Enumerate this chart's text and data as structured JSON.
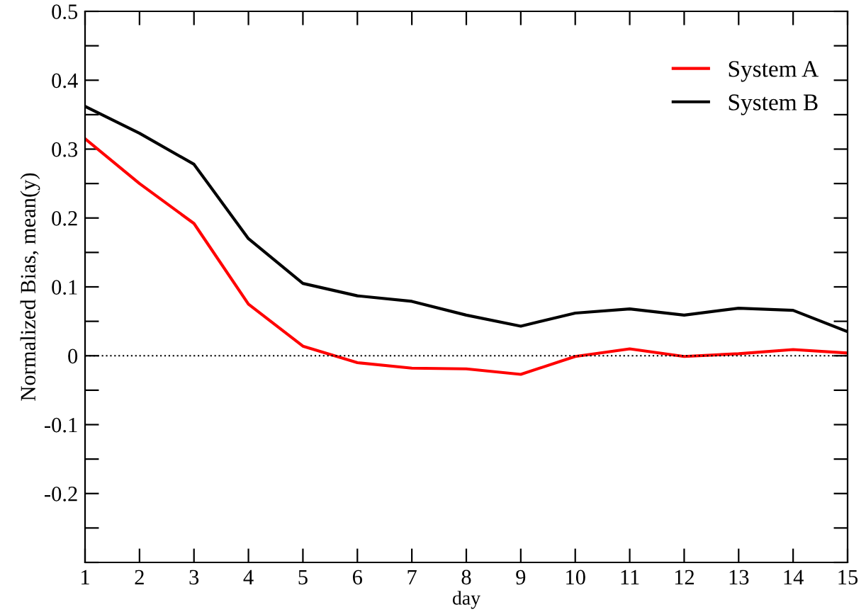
{
  "chart_data": {
    "type": "line",
    "xlabel": "day",
    "ylabel": "Normalized Bias, mean(y)",
    "x": [
      1,
      2,
      3,
      4,
      5,
      6,
      7,
      8,
      9,
      10,
      11,
      12,
      13,
      14,
      15
    ],
    "series": [
      {
        "name": "System A",
        "color": "#ff0000",
        "values": [
          0.315,
          0.25,
          0.192,
          0.075,
          0.014,
          -0.01,
          -0.018,
          -0.019,
          -0.027,
          -0.001,
          0.01,
          -0.001,
          0.003,
          0.009,
          0.004
        ]
      },
      {
        "name": "System B",
        "color": "#000000",
        "values": [
          0.362,
          0.323,
          0.278,
          0.17,
          0.105,
          0.087,
          0.079,
          0.059,
          0.043,
          0.062,
          0.068,
          0.059,
          0.069,
          0.066,
          0.035
        ]
      }
    ],
    "xlim": [
      1,
      15
    ],
    "xticks": [
      1,
      2,
      3,
      4,
      5,
      6,
      7,
      8,
      9,
      10,
      11,
      12,
      13,
      14,
      15
    ],
    "ylim": [
      -0.3,
      0.5
    ],
    "yticks": [
      {
        "value": -0.3,
        "label": null
      },
      {
        "value": -0.25,
        "label": null
      },
      -0.2,
      {
        "value": -0.15,
        "label": null
      },
      -0.1,
      {
        "value": -0.05,
        "label": null
      },
      0,
      {
        "value": 0.05,
        "label": null
      },
      0.1,
      {
        "value": 0.15,
        "label": null
      },
      0.2,
      {
        "value": 0.25,
        "label": null
      },
      0.3,
      {
        "value": 0.35,
        "label": null
      },
      0.4,
      {
        "value": 0.45,
        "label": null
      },
      0.5
    ],
    "ref_lines": [
      {
        "axis": "y",
        "value": 0,
        "color": "#000000",
        "line_style": "dotted"
      }
    ],
    "legend": "top right",
    "grid": false,
    "marker": "none",
    "line_style": "solid"
  }
}
